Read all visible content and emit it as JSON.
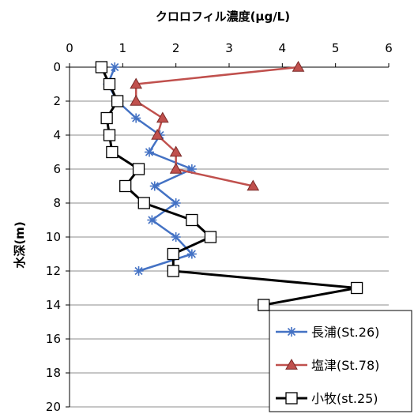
{
  "chart_data": {
    "type": "line",
    "title": "",
    "xlabel": "クロロフィル濃度(μg/L)",
    "ylabel": "水深(m)",
    "xlim": [
      0,
      6
    ],
    "ylim": [
      0,
      20
    ],
    "y_inverted": true,
    "x_axis_position": "top",
    "x_ticks": [
      0,
      1,
      2,
      3,
      4,
      5,
      6
    ],
    "y_ticks": [
      0,
      2,
      4,
      6,
      8,
      10,
      12,
      14,
      16,
      18,
      20
    ],
    "grid": "horizontal",
    "legend_position": "bottom-right",
    "series": [
      {
        "name": "長浦(St.26)",
        "color": "#4472C4",
        "marker": "star",
        "points": [
          {
            "x": 0.85,
            "y": 0
          },
          {
            "x": 0.72,
            "y": 1
          },
          {
            "x": 0.9,
            "y": 2
          },
          {
            "x": 1.25,
            "y": 3
          },
          {
            "x": 1.7,
            "y": 4
          },
          {
            "x": 1.5,
            "y": 5
          },
          {
            "x": 2.3,
            "y": 6
          },
          {
            "x": 1.6,
            "y": 7
          },
          {
            "x": 2.0,
            "y": 8
          },
          {
            "x": 1.55,
            "y": 9
          },
          {
            "x": 2.0,
            "y": 10
          },
          {
            "x": 2.3,
            "y": 11
          },
          {
            "x": 1.3,
            "y": 12
          }
        ]
      },
      {
        "name": "塩津(St.78)",
        "color": "#C0504D",
        "marker": "triangle",
        "points": [
          {
            "x": 4.3,
            "y": 0
          },
          {
            "x": 1.25,
            "y": 1
          },
          {
            "x": 1.25,
            "y": 2
          },
          {
            "x": 1.75,
            "y": 3
          },
          {
            "x": 1.65,
            "y": 4
          },
          {
            "x": 2.0,
            "y": 5
          },
          {
            "x": 2.0,
            "y": 6
          },
          {
            "x": 3.45,
            "y": 7
          }
        ]
      },
      {
        "name": "小牧(st.25)",
        "color": "#000000",
        "marker": "square",
        "points": [
          {
            "x": 0.6,
            "y": 0
          },
          {
            "x": 0.75,
            "y": 1
          },
          {
            "x": 0.9,
            "y": 2
          },
          {
            "x": 0.7,
            "y": 3
          },
          {
            "x": 0.75,
            "y": 4
          },
          {
            "x": 0.8,
            "y": 5
          },
          {
            "x": 1.3,
            "y": 6
          },
          {
            "x": 1.05,
            "y": 7
          },
          {
            "x": 1.4,
            "y": 8
          },
          {
            "x": 2.3,
            "y": 9
          },
          {
            "x": 2.65,
            "y": 10
          },
          {
            "x": 1.95,
            "y": 11
          },
          {
            "x": 1.95,
            "y": 12
          },
          {
            "x": 5.4,
            "y": 13
          },
          {
            "x": 3.65,
            "y": 14
          }
        ]
      }
    ]
  }
}
